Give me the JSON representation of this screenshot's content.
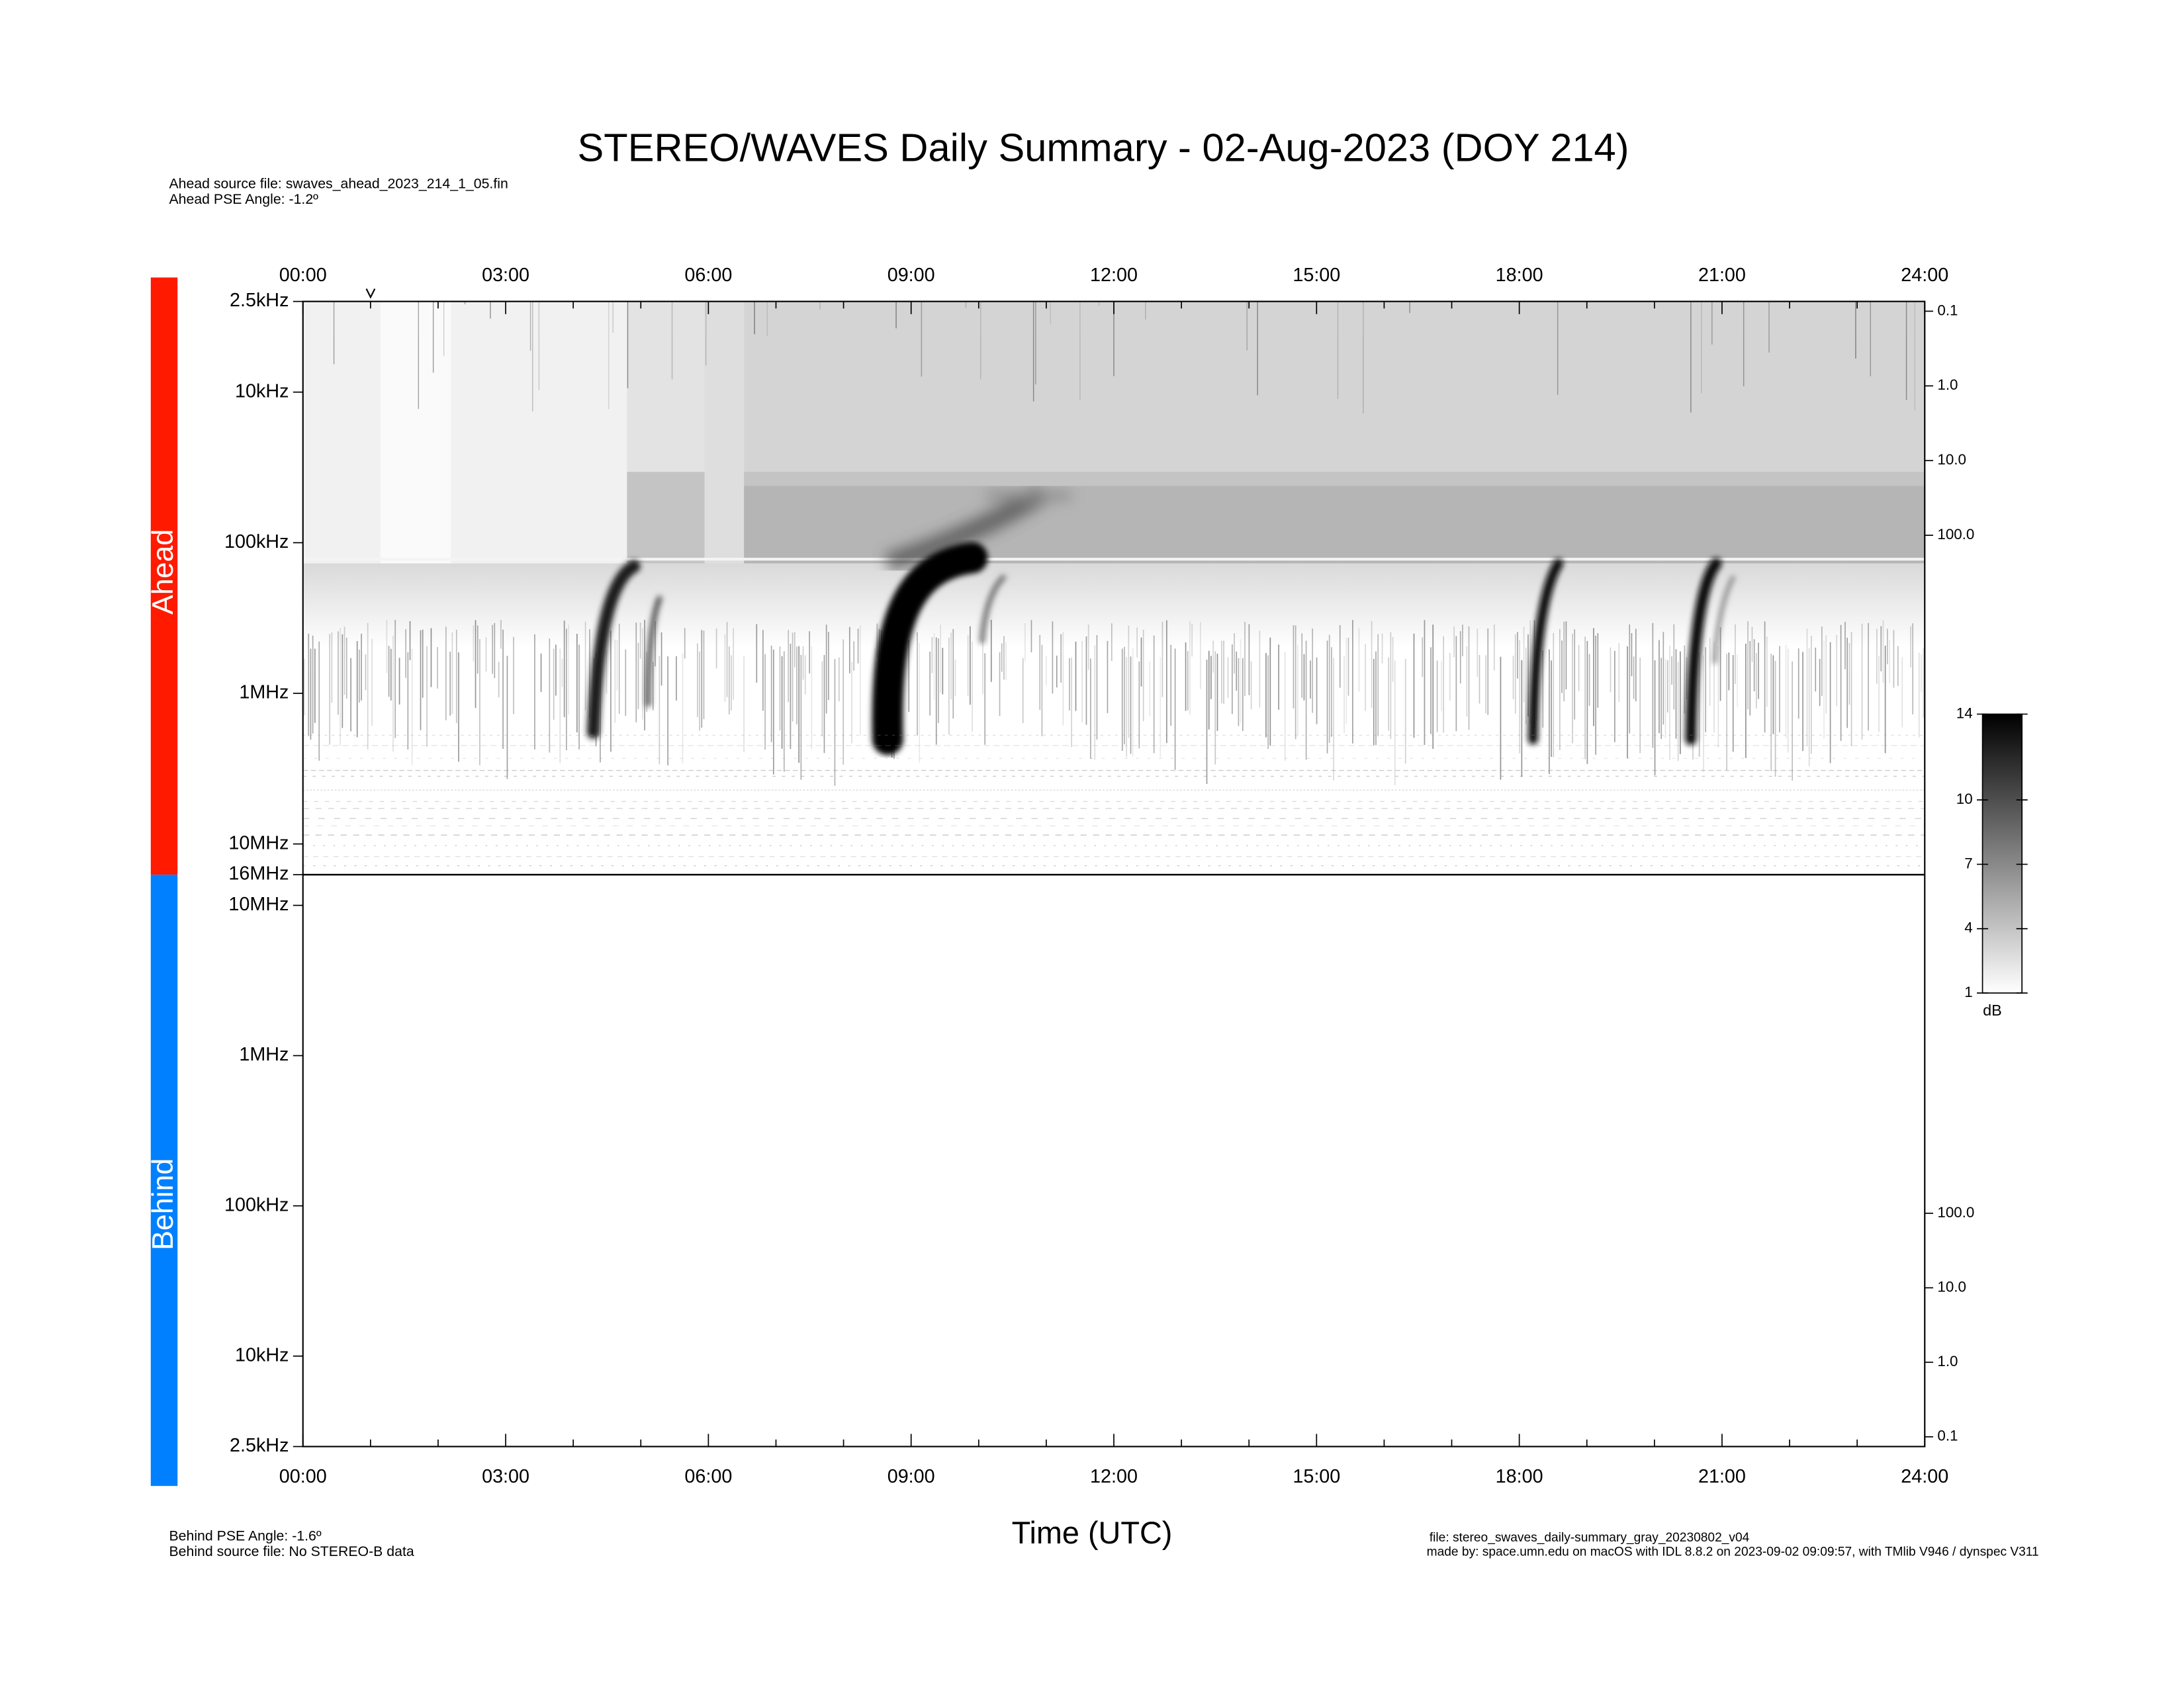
{
  "title": "STEREO/WAVES Daily Summary - 02-Aug-2023 (DOY 214)",
  "header": [
    "Ahead source file: swaves_ahead_2023_214_1_05.fin",
    "Ahead PSE Angle:   -1.2º"
  ],
  "footer_left": [
    "Behind PSE Angle:   -1.6º",
    "Behind source file: No STEREO-B data"
  ],
  "footer_right": [
    "file: stereo_swaves_daily-summary_gray_20230802_v04",
    "made by: space.umn.edu on macOS with IDL 8.8.2 on 2023-09-02 09:09:57, with TMlib V946 / dynspec V311"
  ],
  "chart_data": [
    {
      "type": "spectrogram",
      "name": "Ahead",
      "color": "#ff1a00",
      "xlim": [
        0,
        24
      ],
      "xticks": [
        {
          "value": 0,
          "label": "00:00"
        },
        {
          "value": 3,
          "label": "03:00"
        },
        {
          "value": 6,
          "label": "06:00"
        },
        {
          "value": 9,
          "label": "09:00"
        },
        {
          "value": 12,
          "label": "12:00"
        },
        {
          "value": 15,
          "label": "15:00"
        },
        {
          "value": 18,
          "label": "18:00"
        },
        {
          "value": 21,
          "label": "21:00"
        },
        {
          "value": 24,
          "label": "24:00"
        }
      ],
      "yscale": "log",
      "ylim": [
        2500,
        16000000
      ],
      "yticks": [
        {
          "value": 2500,
          "label": "2.5kHz"
        },
        {
          "value": 10000,
          "label": "10kHz"
        },
        {
          "value": 100000,
          "label": "100kHz"
        },
        {
          "value": 1000000,
          "label": "1MHz"
        },
        {
          "value": 10000000,
          "label": "10MHz"
        },
        {
          "value": 16000000,
          "label": "16MHz"
        }
      ],
      "y2lim": [
        0.074,
        3500000
      ],
      "y2ticks": [
        0.1,
        {
          "value": 1,
          "label": "1.0"
        },
        {
          "value": 10,
          "label": "10.0"
        },
        {
          "value": 100,
          "label": "100.0"
        }
      ],
      "colorbar": {
        "label": "dB",
        "lim": [
          1,
          14
        ],
        "ticks": [
          1,
          4,
          7,
          10,
          14
        ]
      }
    },
    {
      "type": "spectrogram",
      "name": "Behind",
      "color": "#0080ff",
      "xlabel": "Time (UTC)",
      "xlim": [
        0,
        24
      ],
      "xticks": [
        {
          "value": 0,
          "label": "00:00"
        },
        {
          "value": 3,
          "label": "03:00"
        },
        {
          "value": 6,
          "label": "06:00"
        },
        {
          "value": 9,
          "label": "09:00"
        },
        {
          "value": 12,
          "label": "12:00"
        },
        {
          "value": 15,
          "label": "15:00"
        },
        {
          "value": 18,
          "label": "18:00"
        },
        {
          "value": 21,
          "label": "21:00"
        },
        {
          "value": 24,
          "label": "24:00"
        }
      ],
      "yscale": "log",
      "ylim": [
        16000000,
        2500
      ],
      "yticks": [
        {
          "value": 10000000,
          "label": "10MHz"
        },
        {
          "value": 1000000,
          "label": "1MHz"
        },
        {
          "value": 100000,
          "label": "100kHz"
        },
        {
          "value": 10000,
          "label": "10kHz"
        },
        {
          "value": 2500,
          "label": "2.5kHz"
        }
      ],
      "y2lim": [
        3500000,
        0.074
      ],
      "y2ticks": [
        {
          "value": 100,
          "label": "100.0"
        },
        {
          "value": 10,
          "label": "10.0"
        },
        {
          "value": 1,
          "label": "1.0"
        },
        0.1
      ]
    }
  ]
}
